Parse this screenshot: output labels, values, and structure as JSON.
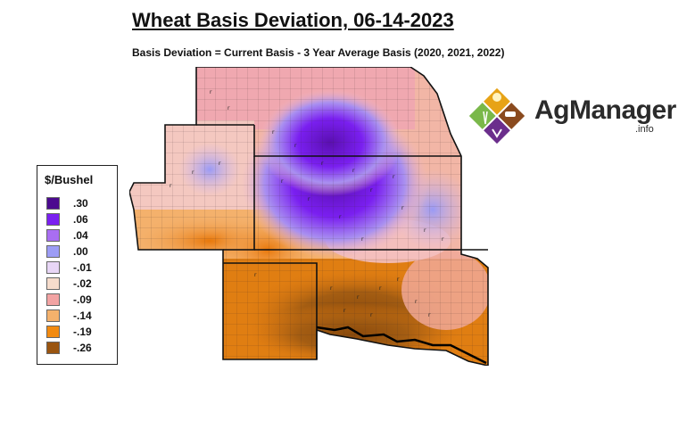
{
  "title": "Wheat Basis Deviation, 06-14-2023",
  "subtitle": "Basis Deviation = Current Basis - 3 Year Average Basis (2020, 2021, 2022)",
  "legend": {
    "title": "$/Bushel",
    "items": [
      {
        "label": ".30",
        "color": "#4b0a8f"
      },
      {
        "label": ".06",
        "color": "#7a1ff0"
      },
      {
        "label": ".04",
        "color": "#a96ef2"
      },
      {
        "label": ".00",
        "color": "#9c9cf5"
      },
      {
        "label": "-.01",
        "color": "#e8d6f6"
      },
      {
        "label": "-.02",
        "color": "#f6dccc"
      },
      {
        "label": "-.09",
        "color": "#f2a3a3"
      },
      {
        "label": "-.14",
        "color": "#f4b16c"
      },
      {
        "label": "-.19",
        "color": "#f28a10"
      },
      {
        "label": "-.26",
        "color": "#9a5510"
      }
    ]
  },
  "logo": {
    "name": "AgManager",
    "suffix": ".info"
  }
}
